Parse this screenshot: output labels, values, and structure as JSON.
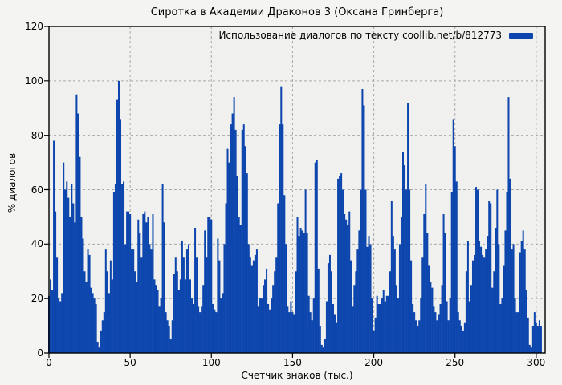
{
  "chart": {
    "title": "Сиротка в Академии Драконов 3 (Оксана Гринберга)",
    "legend_label": "Использование диалогов по тексту coollib.net/b/812773"
  },
  "colors": {
    "bar": "#0b45ad",
    "figure_bg": "#f4f4f2",
    "plot_bg": "#f0f0ee",
    "grid": "#a8a8a8",
    "border": "#000000",
    "text": "#000000"
  },
  "chart_data": {
    "type": "bar",
    "title": "Сиротка в Академии Драконов 3 (Оксана Гринберга)",
    "xlabel": "Счетчик знаков (тыс.)",
    "ylabel": "% диалогов",
    "legend": [
      "Использование диалогов по тексту coollib.net/b/812773"
    ],
    "legend_position": "top-right",
    "grid": true,
    "xlim": [
      0,
      305.5
    ],
    "ylim": [
      0,
      120
    ],
    "x_ticks": [
      0,
      50,
      100,
      150,
      200,
      250,
      300
    ],
    "y_ticks": [
      0,
      20,
      40,
      60,
      80,
      100,
      120
    ],
    "x_start": 0,
    "x_step": 1,
    "values": [
      21,
      27,
      23,
      78,
      52,
      35,
      20,
      19,
      22,
      70,
      60,
      63,
      57,
      50,
      62,
      55,
      48,
      95,
      88,
      72,
      50,
      42,
      30,
      26,
      38,
      36,
      24,
      22,
      20,
      18,
      4,
      2,
      8,
      12,
      15,
      38,
      30,
      22,
      34,
      27,
      59,
      62,
      93,
      100,
      86,
      62,
      63,
      40,
      52,
      52,
      51,
      38,
      38,
      30,
      26,
      49,
      44,
      35,
      51,
      52,
      48,
      50,
      40,
      38,
      51,
      27,
      25,
      23,
      17,
      20,
      62,
      48,
      15,
      12,
      10,
      5,
      12,
      29,
      35,
      30,
      23,
      27,
      41,
      35,
      27,
      38,
      40,
      27,
      20,
      18,
      46,
      35,
      17,
      15,
      17,
      25,
      45,
      35,
      50,
      50,
      49,
      18,
      16,
      15,
      42,
      34,
      20,
      22,
      40,
      55,
      75,
      70,
      84,
      88,
      94,
      82,
      65,
      50,
      47,
      82,
      84,
      76,
      66,
      40,
      35,
      32,
      34,
      36,
      38,
      17,
      20,
      20,
      25,
      27,
      31,
      18,
      16,
      20,
      25,
      30,
      35,
      55,
      84,
      98,
      84,
      58,
      40,
      17,
      15,
      19,
      15,
      14,
      30,
      50,
      43,
      46,
      45,
      44,
      60,
      44,
      21,
      15,
      12,
      20,
      70,
      71,
      31,
      10,
      3,
      2,
      5,
      19,
      33,
      36,
      30,
      18,
      14,
      11,
      64,
      65,
      66,
      60,
      51,
      49,
      47,
      52,
      34,
      17,
      25,
      30,
      38,
      45,
      60,
      97,
      91,
      60,
      39,
      43,
      40,
      20,
      8,
      13,
      21,
      18,
      18,
      20,
      23,
      19,
      21,
      21,
      30,
      56,
      43,
      38,
      25,
      20,
      40,
      50,
      74,
      69,
      60,
      92,
      60,
      34,
      18,
      15,
      12,
      10,
      12,
      20,
      35,
      51,
      62,
      44,
      32,
      26,
      24,
      17,
      15,
      12,
      14,
      18,
      25,
      51,
      44,
      19,
      12,
      20,
      59,
      86,
      76,
      63,
      15,
      12,
      10,
      8,
      11,
      30,
      41,
      19,
      25,
      34,
      36,
      61,
      60,
      41,
      39,
      36,
      35,
      38,
      43,
      56,
      55,
      24,
      30,
      46,
      60,
      40,
      18,
      20,
      32,
      45,
      59,
      94,
      64,
      38,
      40,
      20,
      15,
      15,
      37,
      41,
      45,
      38,
      23,
      13,
      3,
      2,
      10,
      15,
      11,
      10,
      12,
      10
    ]
  }
}
